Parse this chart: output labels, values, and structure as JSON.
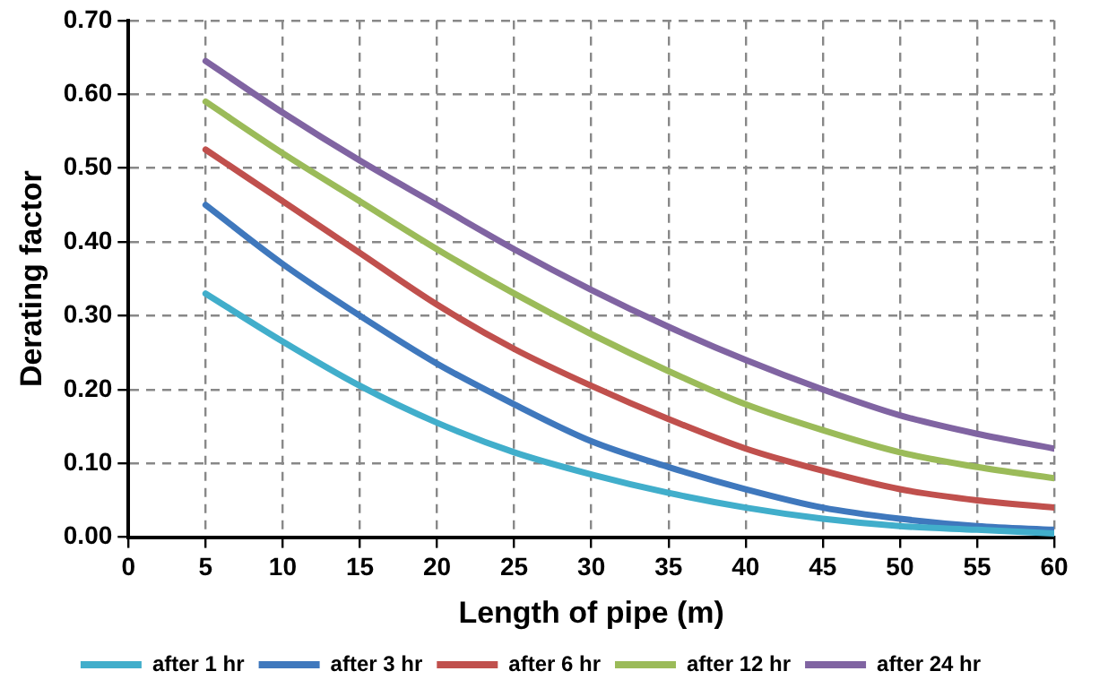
{
  "chart_data": {
    "type": "line",
    "xlabel": "Length of pipe (m)",
    "ylabel": "Derating factor",
    "x": [
      5,
      10,
      15,
      20,
      25,
      30,
      35,
      40,
      45,
      50,
      55,
      60
    ],
    "series": [
      {
        "name": "after 1 hr",
        "color": "#41aecb",
        "values": [
          0.33,
          0.265,
          0.205,
          0.155,
          0.115,
          0.085,
          0.06,
          0.04,
          0.025,
          0.015,
          0.01,
          0.005
        ]
      },
      {
        "name": "after 3 hr",
        "color": "#3f78bd",
        "values": [
          0.45,
          0.37,
          0.3,
          0.235,
          0.18,
          0.13,
          0.095,
          0.065,
          0.04,
          0.025,
          0.015,
          0.01
        ]
      },
      {
        "name": "after 6 hr",
        "color": "#c0504d",
        "values": [
          0.525,
          0.455,
          0.385,
          0.315,
          0.255,
          0.205,
          0.16,
          0.12,
          0.09,
          0.065,
          0.05,
          0.04
        ]
      },
      {
        "name": "after 12 hr",
        "color": "#9bbb59",
        "values": [
          0.59,
          0.52,
          0.455,
          0.39,
          0.33,
          0.275,
          0.225,
          0.18,
          0.145,
          0.115,
          0.095,
          0.08
        ]
      },
      {
        "name": "after 24 hr",
        "color": "#8064a2",
        "values": [
          0.645,
          0.575,
          0.51,
          0.45,
          0.39,
          0.335,
          0.285,
          0.24,
          0.2,
          0.165,
          0.14,
          0.12
        ]
      }
    ],
    "xlim": [
      0,
      60
    ],
    "xticks": [
      0,
      5,
      10,
      15,
      20,
      25,
      30,
      35,
      40,
      45,
      50,
      55,
      60
    ],
    "ylim": [
      0,
      0.7
    ],
    "yticks": [
      {
        "value": 0,
        "label": "0.00"
      },
      {
        "value": 0.1,
        "label": "0.10"
      },
      {
        "value": 0.2,
        "label": "0.20"
      },
      {
        "value": 0.3,
        "label": "0.30"
      },
      {
        "value": 0.4,
        "label": "0.40"
      },
      {
        "value": 0.5,
        "label": "0.50"
      },
      {
        "value": 0.6,
        "label": "0.60"
      },
      {
        "value": 0.7,
        "label": "0.70"
      }
    ],
    "grid": true,
    "legend": "bottom",
    "marker": "none",
    "line_style": "solid"
  }
}
